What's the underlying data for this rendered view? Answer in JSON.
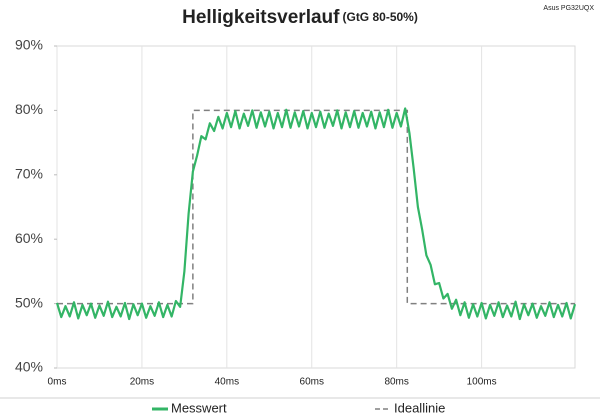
{
  "chart_data": {
    "type": "line",
    "title": "Helligkeitsverlauf",
    "subtitle": "(GtG 80-50%)",
    "annotation": "Asus PG32UQX",
    "x": [
      0,
      1,
      2,
      3,
      4,
      5,
      6,
      7,
      8,
      9,
      10,
      11,
      12,
      13,
      14,
      15,
      16,
      17,
      18,
      19,
      20,
      21,
      22,
      23,
      24,
      25,
      26,
      27,
      28,
      29,
      30,
      31,
      32,
      33,
      34,
      35,
      36,
      37,
      38,
      39,
      40,
      41,
      42,
      43,
      44,
      45,
      46,
      47,
      48,
      49,
      50,
      51,
      52,
      53,
      54,
      55,
      56,
      57,
      58,
      59,
      60,
      61,
      62,
      63,
      64,
      65,
      66,
      67,
      68,
      69,
      70,
      71,
      72,
      73,
      74,
      75,
      76,
      77,
      78,
      79,
      80,
      81,
      82,
      83,
      84,
      85,
      86,
      87,
      88,
      89,
      90,
      91,
      92,
      93,
      94,
      95,
      96,
      97,
      98,
      99,
      100,
      101,
      102,
      103,
      104,
      105,
      106,
      107,
      108,
      109,
      110,
      111,
      112,
      113,
      114,
      115,
      116,
      117,
      118,
      119,
      120,
      121,
      122
    ],
    "series": [
      {
        "name": "Messwert",
        "color": "#33b566",
        "style": "solid",
        "values": [
          50.1,
          47.9,
          49.6,
          48.0,
          50.2,
          47.7,
          49.8,
          48.2,
          50.0,
          47.8,
          49.7,
          48.1,
          50.3,
          47.9,
          49.5,
          48.0,
          50.1,
          47.6,
          49.9,
          48.2,
          50.0,
          47.8,
          49.6,
          48.1,
          50.2,
          47.9,
          49.8,
          48.0,
          50.4,
          49.5,
          55,
          64,
          70.5,
          73,
          76,
          75.5,
          78,
          76.8,
          79,
          77.2,
          79.6,
          77.4,
          79.9,
          77.2,
          79.5,
          77.6,
          80.0,
          77.3,
          79.7,
          77.5,
          79.8,
          77.2,
          79.6,
          77.4,
          80.1,
          77.3,
          79.7,
          77.5,
          79.9,
          77.2,
          79.6,
          77.4,
          79.8,
          77.3,
          79.5,
          77.6,
          80.0,
          77.2,
          79.7,
          77.4,
          79.9,
          77.3,
          79.6,
          77.5,
          79.8,
          77.2,
          79.7,
          77.4,
          80.1,
          77.3,
          79.6,
          77.5,
          80.3,
          76.5,
          71,
          65,
          61.5,
          57.5,
          56,
          53,
          53.2,
          50.8,
          51.5,
          49.2,
          50.6,
          48.2,
          50.2,
          47.8,
          49.9,
          48.0,
          50.1,
          47.7,
          49.8,
          48.1,
          50.2,
          47.9,
          49.7,
          48.0,
          50.3,
          47.6,
          49.9,
          48.2,
          50.0,
          47.8,
          49.6,
          48.1,
          50.2,
          47.9,
          49.8,
          48.0,
          50.1,
          47.7,
          49.9
        ]
      },
      {
        "name": "Ideallinie",
        "color": "#808080",
        "style": "dashed",
        "x": [
          0,
          32,
          32,
          82.5,
          82.5,
          122
        ],
        "values": [
          50,
          50,
          80,
          80,
          50,
          50
        ]
      }
    ],
    "xlim": [
      0,
      122
    ],
    "ylim": [
      40,
      90
    ],
    "xticks": [
      {
        "value": 0,
        "label": "0ms"
      },
      {
        "value": 20,
        "label": "20ms"
      },
      {
        "value": 40,
        "label": "40ms"
      },
      {
        "value": 60,
        "label": "60ms"
      },
      {
        "value": 80,
        "label": "80ms"
      },
      {
        "value": 100,
        "label": "100ms"
      }
    ],
    "yticks": [
      {
        "value": 40,
        "label": "40%"
      },
      {
        "value": 50,
        "label": "50%"
      },
      {
        "value": 60,
        "label": "60%"
      },
      {
        "value": 70,
        "label": "70%"
      },
      {
        "value": 80,
        "label": "80%"
      },
      {
        "value": 90,
        "label": "90%"
      }
    ],
    "grid": "x",
    "legend": "bottom"
  }
}
